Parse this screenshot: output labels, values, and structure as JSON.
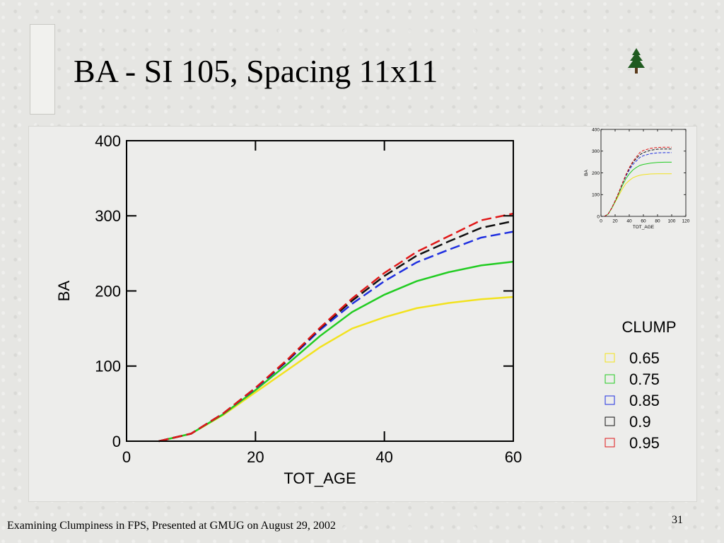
{
  "slide": {
    "title": "BA - SI 105, Spacing 11x11",
    "footer": "Examining Clumpiness in FPS, Presented at GMUG on August 29, 2002",
    "page_number": "31",
    "logo_icon": "pine-tree-icon"
  },
  "chart_data": [
    {
      "type": "line",
      "xlabel": "TOT_AGE",
      "ylabel": "BA",
      "xlim": [
        0,
        60
      ],
      "ylim": [
        0,
        400
      ],
      "xticks": [
        0,
        20,
        40,
        60
      ],
      "yticks": [
        0,
        100,
        200,
        300,
        400
      ],
      "legend_title": "CLUMP",
      "legend_placement": "right",
      "x": [
        5,
        10,
        15,
        20,
        25,
        30,
        35,
        40,
        45,
        50,
        55,
        60
      ],
      "series": [
        {
          "name": "0.65",
          "color": "#f2e21e",
          "dash": "solid",
          "values": [
            0,
            10,
            35,
            65,
            95,
            125,
            150,
            165,
            177,
            184,
            189,
            192
          ]
        },
        {
          "name": "0.75",
          "color": "#22cc22",
          "dash": "solid",
          "values": [
            0,
            10,
            36,
            68,
            103,
            140,
            172,
            195,
            213,
            225,
            234,
            239
          ]
        },
        {
          "name": "0.85",
          "color": "#1f2fe0",
          "dash": "dashed",
          "values": [
            0,
            10,
            37,
            70,
            107,
            148,
            183,
            213,
            238,
            255,
            271,
            279
          ]
        },
        {
          "name": "0.9",
          "color": "#111111",
          "dash": "dashed",
          "values": [
            0,
            10,
            37,
            71,
            108,
            150,
            187,
            220,
            247,
            266,
            284,
            293
          ]
        },
        {
          "name": "0.95",
          "color": "#e01818",
          "dash": "dashed",
          "values": [
            0,
            10,
            37,
            71,
            109,
            151,
            190,
            224,
            252,
            273,
            294,
            303
          ]
        }
      ]
    },
    {
      "type": "line",
      "xlabel": "TOT_AGE",
      "ylabel": "BA",
      "xlim": [
        0,
        120
      ],
      "ylim": [
        0,
        400
      ],
      "xticks": [
        0,
        20,
        40,
        60,
        80,
        100,
        120
      ],
      "yticks": [
        0,
        100,
        200,
        300,
        400
      ],
      "x": [
        5,
        10,
        15,
        20,
        25,
        30,
        35,
        40,
        45,
        50,
        55,
        60,
        70,
        80,
        90,
        100
      ],
      "series": [
        {
          "color": "#f2e21e",
          "dash": "solid",
          "values": [
            0,
            10,
            35,
            65,
            95,
            125,
            150,
            165,
            177,
            184,
            189,
            192,
            195,
            196,
            196,
            196
          ]
        },
        {
          "color": "#22cc22",
          "dash": "solid",
          "values": [
            0,
            10,
            36,
            68,
            103,
            140,
            172,
            195,
            213,
            225,
            234,
            239,
            245,
            248,
            249,
            249
          ]
        },
        {
          "color": "#1f2fe0",
          "dash": "dashed",
          "values": [
            0,
            10,
            37,
            70,
            107,
            148,
            183,
            213,
            238,
            255,
            271,
            279,
            288,
            292,
            293,
            293
          ]
        },
        {
          "color": "#111111",
          "dash": "dashed",
          "values": [
            0,
            10,
            37,
            71,
            108,
            150,
            187,
            220,
            247,
            266,
            284,
            293,
            304,
            309,
            310,
            310
          ]
        },
        {
          "color": "#e01818",
          "dash": "dashed",
          "values": [
            0,
            10,
            37,
            71,
            109,
            151,
            190,
            224,
            252,
            273,
            294,
            303,
            313,
            317,
            318,
            318
          ]
        }
      ]
    }
  ]
}
